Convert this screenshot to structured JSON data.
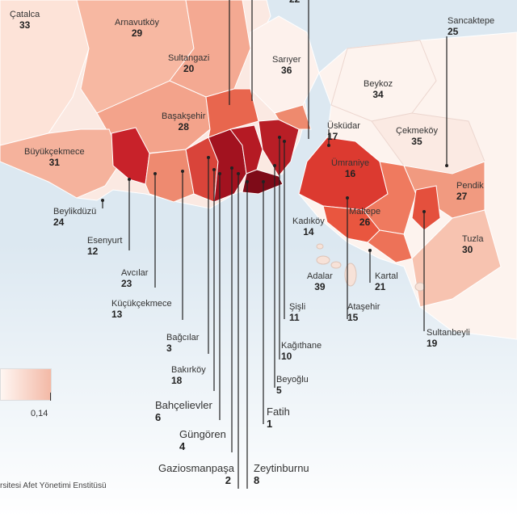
{
  "legend": {
    "max_value": "0,14"
  },
  "source": "rsitesi Afet Yönetimi Enstitüsü",
  "top_cut_value": "22",
  "colors": {
    "low": "#fdeee8",
    "mid": "#f2a48c",
    "high": "#e35a45",
    "max": "#8b0b1c",
    "sea": "#dce8f1"
  },
  "districts": [
    {
      "name": "Çatalca",
      "rank": "33"
    },
    {
      "name": "Arnavutköy",
      "rank": "29"
    },
    {
      "name": "Sultangazi",
      "rank": "20"
    },
    {
      "name": "Sarıyer",
      "rank": "36"
    },
    {
      "name": "Sancaktepe",
      "rank": "25"
    },
    {
      "name": "Beykoz",
      "rank": "34"
    },
    {
      "name": "Başakşehir",
      "rank": "28"
    },
    {
      "name": "Üsküdar",
      "rank": "17"
    },
    {
      "name": "Çekmeköy",
      "rank": "35"
    },
    {
      "name": "Büyükçekmece",
      "rank": "31"
    },
    {
      "name": "Ümraniye",
      "rank": "16"
    },
    {
      "name": "Pendik",
      "rank": "27"
    },
    {
      "name": "Beylikdüzü",
      "rank": "24"
    },
    {
      "name": "Maltepe",
      "rank": "26"
    },
    {
      "name": "Kadıköy",
      "rank": "14"
    },
    {
      "name": "Esenyurt",
      "rank": "12"
    },
    {
      "name": "Tuzla",
      "rank": "30"
    },
    {
      "name": "Avcılar",
      "rank": "23"
    },
    {
      "name": "Adalar",
      "rank": "39"
    },
    {
      "name": "Kartal",
      "rank": "21"
    },
    {
      "name": "Küçükçekmece",
      "rank": "13"
    },
    {
      "name": "Şişli",
      "rank": "11"
    },
    {
      "name": "Ataşehir",
      "rank": "15"
    },
    {
      "name": "Sultanbeyli",
      "rank": "19"
    },
    {
      "name": "Bağcılar",
      "rank": "3"
    },
    {
      "name": "Kağıthane",
      "rank": "10"
    },
    {
      "name": "Bakırköy",
      "rank": "18"
    },
    {
      "name": "Beyoğlu",
      "rank": "5"
    },
    {
      "name": "Bahçelievler",
      "rank": "6"
    },
    {
      "name": "Fatih",
      "rank": "1"
    },
    {
      "name": "Güngören",
      "rank": "4"
    },
    {
      "name": "Gaziosmanpaşa",
      "rank": "2"
    },
    {
      "name": "Zeytinburnu",
      "rank": "8"
    }
  ]
}
